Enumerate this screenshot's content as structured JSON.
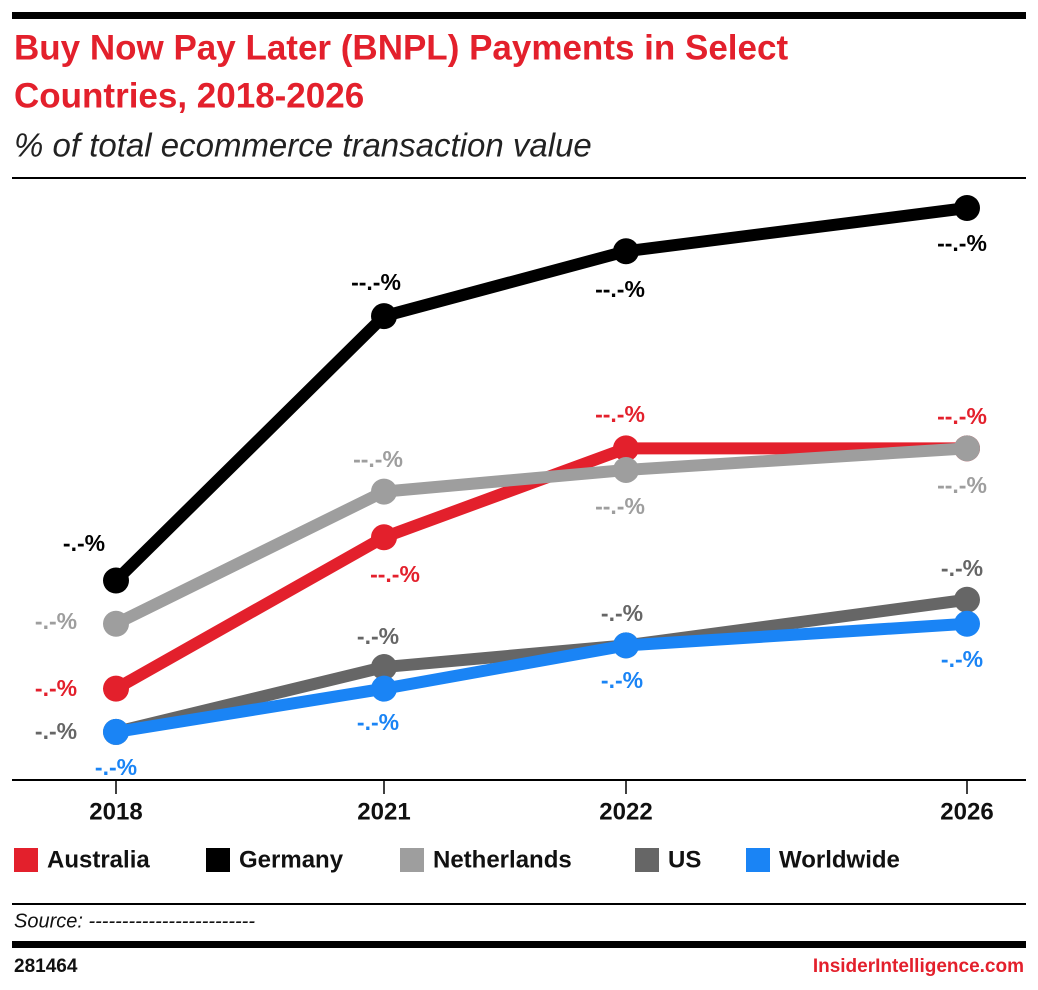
{
  "chart_data": {
    "type": "line",
    "title": [
      "Buy Now Pay Later (BNPL) Payments in Select",
      "Countries, 2018-2026"
    ],
    "subtitle": "% of total ecommerce transaction value",
    "categories": [
      "2018",
      "2021",
      "2022",
      "2026"
    ],
    "series": [
      {
        "name": "Australia",
        "color": "#e3202c",
        "values": [
          3.8,
          10.1,
          13.8,
          13.8
        ],
        "value_labels": [
          "-.-%",
          "--.-%",
          "--.-%",
          "--.-%"
        ]
      },
      {
        "name": "Germany",
        "color": "#000000",
        "values": [
          8.3,
          19.3,
          22.0,
          23.8
        ],
        "value_labels": [
          "-.-%",
          "--.-%",
          "--.-%",
          "--.-%"
        ]
      },
      {
        "name": "Netherlands",
        "color": "#9e9e9e",
        "values": [
          6.5,
          12.0,
          12.9,
          13.8
        ],
        "value_labels": [
          "-.-%",
          "--.-%",
          "--.-%",
          "--.-%"
        ]
      },
      {
        "name": "US",
        "color": "#666666",
        "values": [
          2.0,
          4.7,
          5.6,
          7.5
        ],
        "value_labels": [
          "-.-%",
          "-.-%",
          "-.-%",
          "-.-%"
        ]
      },
      {
        "name": "Worldwide",
        "color": "#1a84f5",
        "values": [
          2.0,
          3.8,
          5.6,
          6.5
        ],
        "value_labels": [
          "-.-%",
          "-.-%",
          "-.-%",
          "-.-%"
        ]
      }
    ],
    "source": "Source: -------------------------",
    "chart_id": "281464",
    "brand": "InsiderIntelligence.com"
  }
}
